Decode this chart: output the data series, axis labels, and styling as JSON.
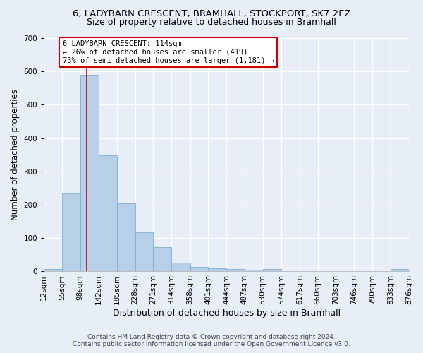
{
  "title_line1": "6, LADYBARN CRESCENT, BRAMHALL, STOCKPORT, SK7 2EZ",
  "title_line2": "Size of property relative to detached houses in Bramhall",
  "xlabel": "Distribution of detached houses by size in Bramhall",
  "ylabel": "Number of detached properties",
  "bar_color": "#b8cfe8",
  "bar_edge_color": "#7bafd4",
  "bin_edges": [
    12,
    55,
    98,
    142,
    185,
    228,
    271,
    314,
    358,
    401,
    444,
    487,
    530,
    574,
    617,
    660,
    703,
    746,
    790,
    833,
    876
  ],
  "bar_heights": [
    8,
    235,
    590,
    348,
    204,
    118,
    73,
    27,
    14,
    10,
    7,
    5,
    7,
    0,
    0,
    0,
    0,
    0,
    0,
    8
  ],
  "property_size": 114,
  "vline_color": "#cc0000",
  "annotation_text": "6 LADYBARN CRESCENT: 114sqm\n← 26% of detached houses are smaller (419)\n73% of semi-detached houses are larger (1,181) →",
  "annotation_box_facecolor": "#ffffff",
  "annotation_box_edgecolor": "#cc0000",
  "ylim": [
    0,
    700
  ],
  "yticks": [
    0,
    100,
    200,
    300,
    400,
    500,
    600,
    700
  ],
  "footer_line1": "Contains HM Land Registry data © Crown copyright and database right 2024.",
  "footer_line2": "Contains public sector information licensed under the Open Government Licence v3.0.",
  "background_color": "#e8eef8",
  "grid_color": "#ffffff",
  "title_fontsize": 9.5,
  "subtitle_fontsize": 9,
  "ylabel_fontsize": 8.5,
  "xlabel_fontsize": 9,
  "tick_label_fontsize": 7.5,
  "annotation_fontsize": 7.5,
  "footer_fontsize": 6.5
}
